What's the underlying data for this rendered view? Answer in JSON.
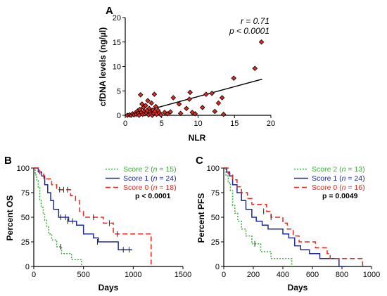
{
  "chart_data": [
    {
      "type": "scatter",
      "panel": "A",
      "xlabel": "NLR",
      "ylabel": "cfDNA levels (ng/µl)",
      "xlim": [
        0,
        20
      ],
      "ylim": [
        0,
        20
      ],
      "x_ticks": [
        0,
        5,
        10,
        15,
        20
      ],
      "y_ticks": [
        0,
        5,
        10,
        15,
        20
      ],
      "annotations": [
        "r = 0.71",
        "p < 0.0001"
      ],
      "marker_color": "#e8261c",
      "line_color": "#000000",
      "trend_line": {
        "x": [
          0.5,
          18.8
        ],
        "y": [
          0.0,
          7.4
        ]
      },
      "points": [
        {
          "x": 0.3,
          "y": 0.0
        },
        {
          "x": 0.6,
          "y": 0.1
        },
        {
          "x": 0.8,
          "y": 0.0
        },
        {
          "x": 1.0,
          "y": 0.3
        },
        {
          "x": 1.2,
          "y": 0.1
        },
        {
          "x": 1.4,
          "y": 0.5
        },
        {
          "x": 1.5,
          "y": 0.2
        },
        {
          "x": 1.7,
          "y": 0.9
        },
        {
          "x": 1.8,
          "y": 0.4
        },
        {
          "x": 1.9,
          "y": 0.0
        },
        {
          "x": 2.0,
          "y": 1.2
        },
        {
          "x": 2.1,
          "y": 4.2
        },
        {
          "x": 2.2,
          "y": 0.6
        },
        {
          "x": 2.3,
          "y": 2.3
        },
        {
          "x": 2.4,
          "y": 0.2
        },
        {
          "x": 2.5,
          "y": 1.6
        },
        {
          "x": 2.6,
          "y": 0.8
        },
        {
          "x": 2.7,
          "y": 0.3
        },
        {
          "x": 2.8,
          "y": 2.0
        },
        {
          "x": 2.9,
          "y": 0.5
        },
        {
          "x": 3.0,
          "y": 1.0
        },
        {
          "x": 3.1,
          "y": 3.0
        },
        {
          "x": 3.2,
          "y": 0.1
        },
        {
          "x": 3.3,
          "y": 1.4
        },
        {
          "x": 3.4,
          "y": 0.7
        },
        {
          "x": 3.5,
          "y": 0.3
        },
        {
          "x": 3.6,
          "y": 2.5
        },
        {
          "x": 3.7,
          "y": 0.0
        },
        {
          "x": 3.8,
          "y": 1.1
        },
        {
          "x": 3.9,
          "y": 0.4
        },
        {
          "x": 4.0,
          "y": 4.3
        },
        {
          "x": 4.1,
          "y": 0.8
        },
        {
          "x": 4.2,
          "y": 1.8
        },
        {
          "x": 4.3,
          "y": 0.2
        },
        {
          "x": 4.5,
          "y": 1.0
        },
        {
          "x": 4.7,
          "y": 0.5
        },
        {
          "x": 4.9,
          "y": 0.1
        },
        {
          "x": 5.4,
          "y": 0.6
        },
        {
          "x": 5.8,
          "y": 0.3
        },
        {
          "x": 6.2,
          "y": 0.7
        },
        {
          "x": 6.6,
          "y": 3.6
        },
        {
          "x": 7.4,
          "y": 2.3
        },
        {
          "x": 7.6,
          "y": 0.4
        },
        {
          "x": 8.4,
          "y": 1.4
        },
        {
          "x": 8.8,
          "y": 3.3
        },
        {
          "x": 8.9,
          "y": 4.7
        },
        {
          "x": 9.2,
          "y": 0.6
        },
        {
          "x": 9.6,
          "y": 0.3
        },
        {
          "x": 10.6,
          "y": 1.6
        },
        {
          "x": 11.1,
          "y": 4.3
        },
        {
          "x": 11.9,
          "y": 4.5
        },
        {
          "x": 12.3,
          "y": 0.8
        },
        {
          "x": 12.8,
          "y": 2.5
        },
        {
          "x": 13.3,
          "y": 3.6
        },
        {
          "x": 13.5,
          "y": 0.2
        },
        {
          "x": 14.9,
          "y": 7.6
        },
        {
          "x": 17.8,
          "y": 9.6
        },
        {
          "x": 18.7,
          "y": 15.0
        }
      ]
    },
    {
      "type": "line",
      "subtype": "kaplan-meier",
      "panel": "B",
      "xlabel": "Days",
      "ylabel": "Percent OS",
      "xlim": [
        0,
        1500
      ],
      "ylim": [
        0,
        100
      ],
      "x_ticks": [
        0,
        500,
        1000,
        1500
      ],
      "y_ticks": [
        0,
        25,
        50,
        75,
        100
      ],
      "p_value": "p < 0.0001",
      "legend_position": "top-right",
      "series": [
        {
          "name": "Score 2 (n = 15)",
          "legend_prefix": "Score 2 (",
          "legend_n": "n",
          "legend_suffix": " = 15)",
          "color": "#33b233",
          "dash": "2,2",
          "steps": [
            [
              0,
              100
            ],
            [
              15,
              93
            ],
            [
              30,
              87
            ],
            [
              45,
              80
            ],
            [
              60,
              67
            ],
            [
              75,
              60
            ],
            [
              95,
              53
            ],
            [
              110,
              47
            ],
            [
              130,
              40
            ],
            [
              150,
              33
            ],
            [
              180,
              27
            ],
            [
              230,
              20
            ],
            [
              280,
              13
            ],
            [
              380,
              7
            ],
            [
              480,
              0
            ]
          ],
          "censored": [
            [
              270,
              20
            ]
          ]
        },
        {
          "name": "Score 1 (n = 24)",
          "legend_prefix": "Score 1 (",
          "legend_n": "n",
          "legend_suffix": " = 24)",
          "color": "#1f2a9c",
          "dash": "",
          "steps": [
            [
              0,
              100
            ],
            [
              45,
              96
            ],
            [
              80,
              92
            ],
            [
              110,
              83
            ],
            [
              140,
              75
            ],
            [
              170,
              67
            ],
            [
              200,
              58
            ],
            [
              250,
              50
            ],
            [
              350,
              46
            ],
            [
              430,
              42
            ],
            [
              500,
              33
            ],
            [
              600,
              29
            ],
            [
              650,
              25
            ],
            [
              850,
              17
            ],
            [
              990,
              17
            ]
          ],
          "censored": [
            [
              270,
              50
            ],
            [
              320,
              50
            ],
            [
              340,
              46
            ],
            [
              390,
              46
            ],
            [
              640,
              25
            ],
            [
              900,
              17
            ],
            [
              960,
              17
            ]
          ]
        },
        {
          "name": "Score 0 (n = 18)",
          "legend_prefix": "Score 0 (",
          "legend_n": "n",
          "legend_suffix": " = 18)",
          "color": "#e8261c",
          "dash": "7,4",
          "steps": [
            [
              0,
              100
            ],
            [
              60,
              94
            ],
            [
              100,
              89
            ],
            [
              180,
              83
            ],
            [
              230,
              78
            ],
            [
              370,
              72
            ],
            [
              420,
              67
            ],
            [
              460,
              56
            ],
            [
              500,
              50
            ],
            [
              700,
              44
            ],
            [
              800,
              33
            ],
            [
              1180,
              33
            ],
            [
              1180,
              0
            ]
          ],
          "censored": [
            [
              260,
              78
            ],
            [
              300,
              78
            ],
            [
              340,
              78
            ],
            [
              600,
              50
            ],
            [
              760,
              44
            ],
            [
              840,
              33
            ]
          ]
        }
      ]
    },
    {
      "type": "line",
      "subtype": "kaplan-meier",
      "panel": "C",
      "xlabel": "Days",
      "ylabel": "Percent PFS",
      "xlim": [
        0,
        1000
      ],
      "ylim": [
        0,
        100
      ],
      "x_ticks": [
        0,
        200,
        400,
        600,
        800,
        1000
      ],
      "y_ticks": [
        0,
        25,
        50,
        75,
        100
      ],
      "p_value": "p = 0.0049",
      "legend_position": "top-right",
      "series": [
        {
          "name": "Score 2 (n = 13)",
          "legend_prefix": "Score 2 (",
          "legend_n": "n",
          "legend_suffix": " = 13)",
          "color": "#33b233",
          "dash": "2,2",
          "steps": [
            [
              0,
              100
            ],
            [
              15,
              92
            ],
            [
              30,
              85
            ],
            [
              45,
              77
            ],
            [
              60,
              62
            ],
            [
              75,
              54
            ],
            [
              95,
              46
            ],
            [
              120,
              38
            ],
            [
              150,
              31
            ],
            [
              190,
              23
            ],
            [
              250,
              15
            ],
            [
              320,
              8
            ],
            [
              460,
              0
            ]
          ],
          "censored": [
            [
              210,
              23
            ]
          ]
        },
        {
          "name": "Score 1 (n = 24)",
          "legend_prefix": "Score 1 (",
          "legend_n": "n",
          "legend_suffix": " = 24)",
          "color": "#1f2a9c",
          "dash": "",
          "steps": [
            [
              0,
              100
            ],
            [
              20,
              96
            ],
            [
              40,
              92
            ],
            [
              60,
              83
            ],
            [
              90,
              75
            ],
            [
              120,
              67
            ],
            [
              150,
              58
            ],
            [
              190,
              50
            ],
            [
              220,
              46
            ],
            [
              260,
              42
            ],
            [
              300,
              38
            ],
            [
              400,
              33
            ],
            [
              440,
              29
            ],
            [
              480,
              21
            ],
            [
              520,
              17
            ],
            [
              580,
              13
            ],
            [
              650,
              8
            ],
            [
              780,
              0
            ],
            [
              820,
              0
            ]
          ],
          "censored": []
        },
        {
          "name": "Score 0 (n = 16)",
          "legend_prefix": "Score 0 (",
          "legend_n": "n",
          "legend_suffix": " = 16)",
          "color": "#e8261c",
          "dash": "7,4",
          "steps": [
            [
              0,
              100
            ],
            [
              30,
              94
            ],
            [
              60,
              88
            ],
            [
              90,
              81
            ],
            [
              120,
              75
            ],
            [
              160,
              69
            ],
            [
              190,
              63
            ],
            [
              290,
              56
            ],
            [
              320,
              50
            ],
            [
              400,
              44
            ],
            [
              430,
              38
            ],
            [
              470,
              31
            ],
            [
              510,
              25
            ],
            [
              620,
              19
            ],
            [
              700,
              13
            ],
            [
              720,
              8
            ],
            [
              940,
              8
            ],
            [
              940,
              0
            ]
          ],
          "censored": [
            [
              270,
              56
            ],
            [
              320,
              50
            ]
          ]
        }
      ]
    }
  ]
}
